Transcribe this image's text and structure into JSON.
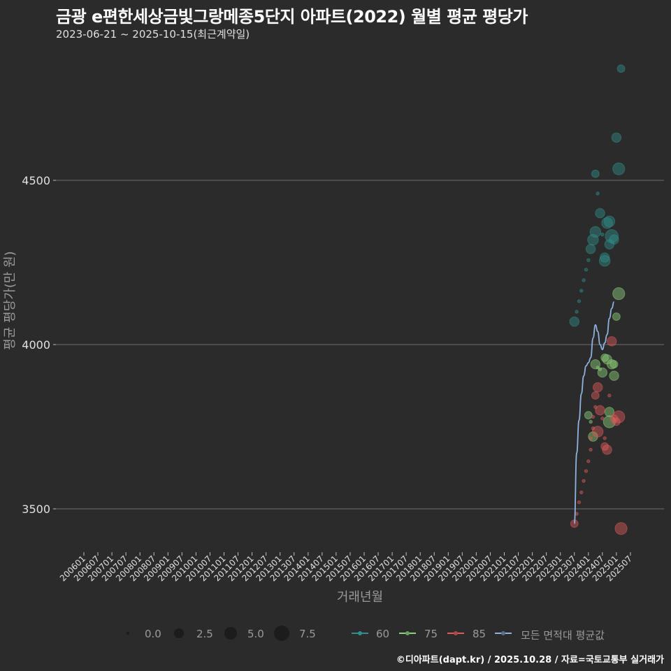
{
  "header": {
    "title": "금광 e편한세상금빛그랑메종5단지 아파트(2022) 월별 평균 평당가",
    "subtitle": "2023-06-21 ~ 2025-10-15(최근계약일)"
  },
  "footer": {
    "credit": "©디아파트(dapt.kr) / 2025.10.28 / 자료=국토교통부 실거래가"
  },
  "axes": {
    "xlabel": "거래년월",
    "ylabel": "평균 평당가(만 원)"
  },
  "legend": {
    "size_title": "",
    "size_items": [
      "0.0",
      "2.5",
      "5.0",
      "7.5"
    ],
    "series_items": [
      "60",
      "75",
      "85",
      "모든 면적대 평균값"
    ]
  },
  "colors": {
    "background": "#2b2b2b",
    "grid": "#6e6e6e",
    "s60": "#2f8f8a",
    "s75": "#8fd17a",
    "s85": "#e05a5a",
    "avg": "#8fb3e0"
  },
  "chart_data": {
    "type": "scatter",
    "title": "금광 e편한세상금빛그랑메종5단지 아파트(2022) 월별 평균 평당가",
    "subtitle": "2023-06-21 ~ 2025-10-15(최근계약일)",
    "xlabel": "거래년월",
    "ylabel": "평균 평당가(만 원)",
    "x_ticks": [
      "200601",
      "200607",
      "200701",
      "200707",
      "200801",
      "200807",
      "200901",
      "200907",
      "201001",
      "201007",
      "201101",
      "201107",
      "201201",
      "201207",
      "201301",
      "201307",
      "201401",
      "201407",
      "201501",
      "201507",
      "201601",
      "201607",
      "201701",
      "201707",
      "201801",
      "201807",
      "201901",
      "201907",
      "202001",
      "202007",
      "202101",
      "202107",
      "202201",
      "202207",
      "202301",
      "202307",
      "202401",
      "202407",
      "202501",
      "202507"
    ],
    "y_ticks": [
      3500,
      4000,
      4500
    ],
    "ylim": [
      3350,
      4860
    ],
    "grid": true,
    "legend_position": "bottom",
    "size_legend": [
      0.0,
      2.5,
      5.0,
      7.5
    ],
    "series": [
      {
        "name": "60",
        "points": [
          {
            "x": "202307",
            "y": 4070,
            "n": 2
          },
          {
            "x": "202308",
            "y": 4100,
            "n": 0
          },
          {
            "x": "202309",
            "y": 4132,
            "n": 0
          },
          {
            "x": "202310",
            "y": 4164,
            "n": 0
          },
          {
            "x": "202311",
            "y": 4196,
            "n": 0
          },
          {
            "x": "202312",
            "y": 4228,
            "n": 0
          },
          {
            "x": "202401",
            "y": 4257,
            "n": 0
          },
          {
            "x": "202402",
            "y": 4291,
            "n": 2
          },
          {
            "x": "202403",
            "y": 4319,
            "n": 3
          },
          {
            "x": "202404",
            "y": 4343,
            "n": 3
          },
          {
            "x": "202404",
            "y": 4520,
            "n": 1
          },
          {
            "x": "202405",
            "y": 4460,
            "n": 0
          },
          {
            "x": "202406",
            "y": 4400,
            "n": 2
          },
          {
            "x": "202407",
            "y": 4335,
            "n": 0
          },
          {
            "x": "202408",
            "y": 4265,
            "n": 2
          },
          {
            "x": "202408",
            "y": 4255,
            "n": 3
          },
          {
            "x": "202409",
            "y": 4370,
            "n": 3
          },
          {
            "x": "202410",
            "y": 4305,
            "n": 2
          },
          {
            "x": "202410",
            "y": 4375,
            "n": 3
          },
          {
            "x": "202411",
            "y": 4330,
            "n": 5
          },
          {
            "x": "202412",
            "y": 4320,
            "n": 2
          },
          {
            "x": "202501",
            "y": 4630,
            "n": 2
          },
          {
            "x": "202502",
            "y": 4535,
            "n": 4
          },
          {
            "x": "202503",
            "y": 4840,
            "n": 1
          }
        ]
      },
      {
        "name": "75",
        "points": [
          {
            "x": "202401",
            "y": 3785,
            "n": 1
          },
          {
            "x": "202402",
            "y": 3765,
            "n": 0
          },
          {
            "x": "202403",
            "y": 3720,
            "n": 2
          },
          {
            "x": "202404",
            "y": 3940,
            "n": 2
          },
          {
            "x": "202405",
            "y": 3930,
            "n": 0
          },
          {
            "x": "202406",
            "y": 3925,
            "n": 0
          },
          {
            "x": "202407",
            "y": 3915,
            "n": 2
          },
          {
            "x": "202408",
            "y": 3960,
            "n": 1
          },
          {
            "x": "202409",
            "y": 3955,
            "n": 2
          },
          {
            "x": "202410",
            "y": 3765,
            "n": 4
          },
          {
            "x": "202410",
            "y": 3795,
            "n": 2
          },
          {
            "x": "202411",
            "y": 3940,
            "n": 2
          },
          {
            "x": "202412",
            "y": 3905,
            "n": 2
          },
          {
            "x": "202412",
            "y": 3940,
            "n": 1
          },
          {
            "x": "202501",
            "y": 4085,
            "n": 1
          },
          {
            "x": "202502",
            "y": 4155,
            "n": 4
          }
        ]
      },
      {
        "name": "85",
        "points": [
          {
            "x": "202307",
            "y": 3455,
            "n": 1
          },
          {
            "x": "202308",
            "y": 3485,
            "n": 0
          },
          {
            "x": "202309",
            "y": 3520,
            "n": 0
          },
          {
            "x": "202310",
            "y": 3550,
            "n": 0
          },
          {
            "x": "202311",
            "y": 3585,
            "n": 0
          },
          {
            "x": "202312",
            "y": 3615,
            "n": 0
          },
          {
            "x": "202401",
            "y": 3645,
            "n": 0
          },
          {
            "x": "202402",
            "y": 3680,
            "n": 0
          },
          {
            "x": "202402",
            "y": 3715,
            "n": 0
          },
          {
            "x": "202403",
            "y": 3745,
            "n": 0
          },
          {
            "x": "202403",
            "y": 3780,
            "n": 0
          },
          {
            "x": "202404",
            "y": 3810,
            "n": 0
          },
          {
            "x": "202404",
            "y": 3845,
            "n": 1
          },
          {
            "x": "202405",
            "y": 3870,
            "n": 2
          },
          {
            "x": "202405",
            "y": 3735,
            "n": 3
          },
          {
            "x": "202406",
            "y": 3800,
            "n": 2
          },
          {
            "x": "202407",
            "y": 3775,
            "n": 0
          },
          {
            "x": "202408",
            "y": 3715,
            "n": 0
          },
          {
            "x": "202408",
            "y": 3690,
            "n": 1
          },
          {
            "x": "202409",
            "y": 3680,
            "n": 2
          },
          {
            "x": "202410",
            "y": 3845,
            "n": 0
          },
          {
            "x": "202411",
            "y": 4010,
            "n": 2
          },
          {
            "x": "202412",
            "y": 3775,
            "n": 1
          },
          {
            "x": "202501",
            "y": 3765,
            "n": 1
          },
          {
            "x": "202502",
            "y": 3780,
            "n": 4
          },
          {
            "x": "202503",
            "y": 3440,
            "n": 4
          }
        ]
      },
      {
        "name": "모든 면적대 평균값",
        "type": "line",
        "points": [
          {
            "x": "202307",
            "y": 3455
          },
          {
            "x": "202308",
            "y": 3670
          },
          {
            "x": "202309",
            "y": 3770
          },
          {
            "x": "202310",
            "y": 3850
          },
          {
            "x": "202311",
            "y": 3905
          },
          {
            "x": "202312",
            "y": 3935
          },
          {
            "x": "202401",
            "y": 3945
          },
          {
            "x": "202402",
            "y": 3960
          },
          {
            "x": "202403",
            "y": 4020
          },
          {
            "x": "202404",
            "y": 4060
          },
          {
            "x": "202405",
            "y": 4040
          },
          {
            "x": "202406",
            "y": 4000
          },
          {
            "x": "202407",
            "y": 3985
          },
          {
            "x": "202408",
            "y": 4005
          },
          {
            "x": "202409",
            "y": 4030
          },
          {
            "x": "202410",
            "y": 4080
          },
          {
            "x": "202411",
            "y": 4110
          },
          {
            "x": "202412",
            "y": 4130
          }
        ]
      }
    ]
  }
}
